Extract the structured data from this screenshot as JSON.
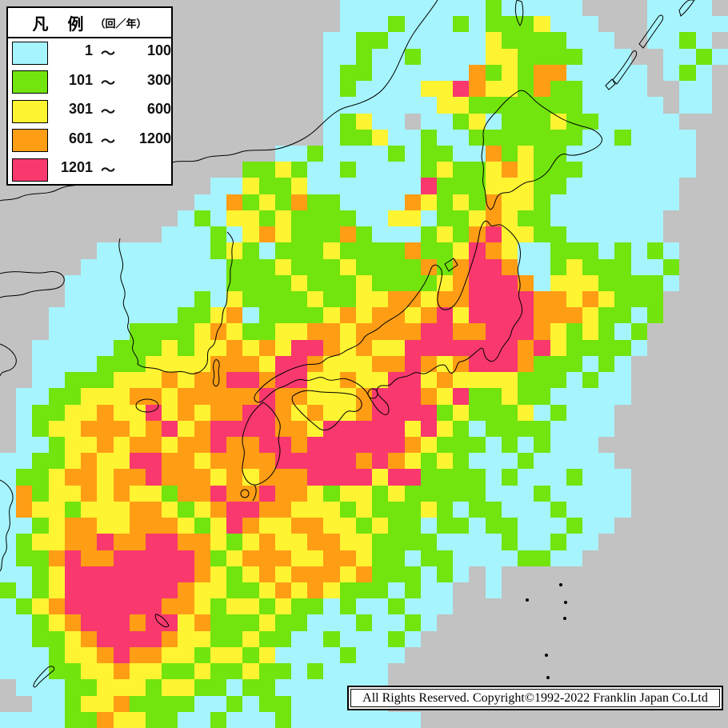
{
  "map": {
    "background_color": "#c2c2c2",
    "legend": {
      "title": "凡　例",
      "unit": "（回／年）",
      "items": [
        {
          "min": "1",
          "tilde": "～",
          "max": "100",
          "color": "#a6f4fd"
        },
        {
          "min": "101",
          "tilde": "～",
          "max": "300",
          "color": "#72e40e"
        },
        {
          "min": "301",
          "tilde": "～",
          "max": "600",
          "color": "#fff432"
        },
        {
          "min": "601",
          "tilde": "～",
          "max": "1200",
          "color": "#ff9d15"
        },
        {
          "min": "1201",
          "tilde": "～",
          "max": "",
          "color": "#f9386e"
        }
      ]
    },
    "copyright": "All Rights Reserved. Copyright©1992-2022 Franklin Japan Co.Ltd"
  },
  "chart_data": {
    "type": "heatmap",
    "classes": [
      {
        "char": "c",
        "range": "1 ~ 100",
        "color": "#a6f4fd"
      },
      {
        "char": "g",
        "range": "101 ~ 300",
        "color": "#72e40e"
      },
      {
        "char": "y",
        "range": "301 ~ 600",
        "color": "#fff432"
      },
      {
        "char": "o",
        "range": "601 ~ 1200",
        "color": "#ff9d15"
      },
      {
        "char": "p",
        "range": "1201 ~",
        "color": "#f9386e"
      },
      {
        "char": ".",
        "range": "no data",
        "color": "transparent"
      }
    ],
    "palette": {
      "c": "#a6f4fd",
      "g": "#72e40e",
      "y": "#fff432",
      "o": "#ff9d15",
      "p": "#f9386e"
    },
    "grid_size": {
      "cols": 45,
      "rows": 45
    },
    "grid_rows": [
      "..... ..... ..... ..... .cccc ccccc gcccc c.... cccc.",
      "..... ..... ..... ..... .cccg cccgc gggyc cc... ccccc",
      "..... ..... ..... ..... ccggc ccccc ygggg ccc.. ccgc.",
      "..... ..... ..... ..... ccgcc gcccc yyggg gccc. .ccgc",
      "..... ..... ..... ..... cggcc cccco gygoo ccccc .cgc.",
      "..... ..... ..... ..... cgccc cyypo yygog gcccc ..cc.",
      "..... ..... ..... ..... ccccc ccyyg ggggg gcccc c.cc.",
      "..... ..... ..... ..... cgycc .ccgy cgggy ggccc cc...",
      "..... ..... ..... ..... cggyc cgccg ggggg gccgc ccc..",
      "..... ..... ..... ..ccg ccccg cggcc ogygg ccccc ccc..",
      "..... ..... ..... ggygc cgccc cgygg yoygg gcccc ccc..",
      "..... ..... ...cc yggyc ccccc cpggg yyygg ccccc cc...",
      "..... ..... ..cco gygog gcccc oygyg oyygc ccccc cc...",
      "..... ..... .cgcy ygygg ggccy ycggy oyggc ccccc c....",
      "..... ..... cccgc yoygg gogcc cgygo pyygg ccccc c....",
      "..... .cccc cccgy gcggg ygggg oggyp oyccg ggcgc gc...",
      "..... ccccc ccccg ggygg gyggg gogop poccg ygggc cg...",
      "....c ccccc ccccg gggyg ggygg ggyop ppocy yyggg gc...",
      "....c ccccc ccgcy ggggy ggyyo oyoop pppoo yoygg g....",
      "...cc ccccc cggyo cgggg yoyoo yopyp pppoo oyggc g....",
      "...cc cccgg ggyoy ggyyo oyooo oppoo pppoy gygcg .....",
      "..ccc ccggg ygyyo yoypp oyoyy ppppp ppopy ggggc .....",
      "..ccc cgggy yyyoo oyppo yyyoo poyop ppogg gcgc. .....",
      "..ccg ggyyy oyoop poppy yoyyp pyoyy yyggg cgcc. .....",
      ".ccgg yyyoo yoooo opooy yyopp poypg gyggc cccc. .....",
      ".cggy yoyyp yoyoo ppoyo yyopp ppgyg ggycg ccc.. .....",
      ".cgyy oooyo pyopp ppooy ppppp ypygc ggggc ccc.. .....",
      ".ccgy yoyoo yoopo oppop ppppp oyggg cgcgc cc... .....",
      "ccggy oyypp ooyoo ooppp ppopo ygygc ccgcc ccc.. .....",
      "cggyo oyoop oooyo yooop pppyp pgggg cgccc gccc. .....",
      "cogyy oyoyy goopo opooy gyygy ggggg cccgc cccc. .....",
      "coyyg yyyoo ygyop pooyy ygygg gygcg gcccg cccc. .....",
      "ccgyo oyyoo oygyp oyyoo yygyg gcggc ggccc gcc.. .....",
      "cgyyo opoop pooyg yoyyo oyygg ggccc cgccg cc... .....",
      "cggop ooppp ppogy oooyy ooygg cggcc ccggc c.... .....",
      "ccgyp ppppp ppoyg yoyoo oyogg gcgc. c.... ..... .....",
      "gcgyp ppppp poyyg gyoyo ygggc gcc.. c.... ..... .....",
      "cgyop ppppp ooygy ygygg cgccg ccc.. ..... ..... .....",
      "ccgyo pppop pyogg gyggc ccgcc gc... ..... ..... .....",
      "ccggy opppp oyygg yggcc gcccg c.... ..... ..... .....",
      "cccgy yopoo yygyy gyccc cgccc ..... ..... ..... .....",
      "cccgg yyoyy ggygg yggcg cccc. ..... ..... ..... .....",
      ".cccg gyyyg yyggc ggccc cccc. ..... ..... ..... .....",
      "..ccg yyogg ggccg cggcc cccc. ..... ..... ..... .....",
      "ccccg goyyg gccgc ccgcc ccccc c.... ..... ..... ....."
    ]
  }
}
